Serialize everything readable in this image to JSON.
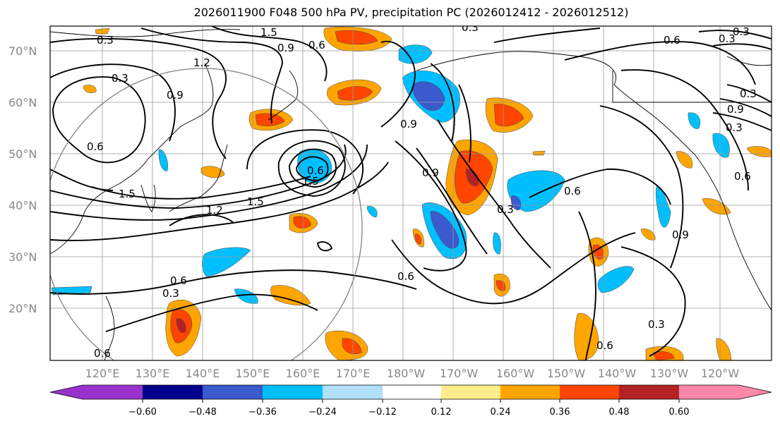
{
  "title": "2026011900 F048 500 hPa PV, precipitation PC (2026012412 - 2026012512)",
  "lon_labels": [
    "120°E",
    "130°E",
    "140°E",
    "150°E",
    "160°E",
    "170°E",
    "180°W",
    "170°W",
    "160°W",
    "150°W",
    "140°W",
    "130°W",
    "120°W"
  ],
  "lat_labels": [
    "70°N",
    "60°N",
    "50°N",
    "40°N",
    "30°N",
    "20°N"
  ],
  "colorbar": {
    "colors": [
      "#9932cc",
      "#00008b",
      "#3a5acd",
      "#00bfff",
      "#b0e0fa",
      "#ffffff",
      "#ffec8b",
      "#ffa500",
      "#ff4500",
      "#b22222",
      "#ff88aa"
    ],
    "tick_labels": [
      "−0.60",
      "−0.48",
      "−0.36",
      "−0.24",
      "−0.12",
      "0.12",
      "0.24",
      "0.36",
      "0.48",
      "0.60"
    ]
  },
  "contour_labels": [
    "0.3",
    "0.6",
    "0.9",
    "1.2",
    "1.5",
    "0.3",
    "0.6",
    "0.9",
    "1.5",
    "1.5",
    "1.2",
    "0.3",
    "0.6",
    "0.9",
    "0.6",
    "0.3",
    "0.6",
    "0.6",
    "0.3",
    "0.9",
    "0.6",
    "0.9",
    "1.5",
    "0.3",
    "0.6",
    "0.3",
    "0.6",
    "0.3",
    "0.3",
    "0.9",
    "0.6",
    "0.3"
  ]
}
